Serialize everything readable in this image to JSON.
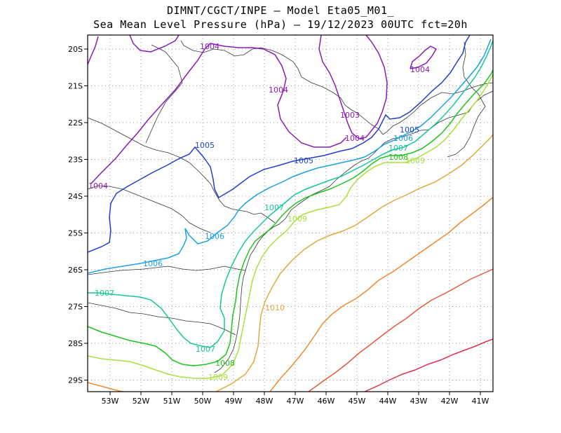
{
  "title": {
    "line1": "DIMNT/CGCT/INPE –  Model Eta05_M01_",
    "line2": "Sea Mean Level Pressure (hPa) – 19/12/2023 00UTC fct=20h"
  },
  "axes": {
    "x_ticks": [
      "53W",
      "52W",
      "51W",
      "50W",
      "49W",
      "48W",
      "47W",
      "46W",
      "45W",
      "44W",
      "43W",
      "42W",
      "41W"
    ],
    "y_ticks": [
      "20S",
      "21S",
      "22S",
      "23S",
      "24S",
      "25S",
      "26S",
      "27S",
      "28S",
      "29S"
    ]
  },
  "colors": {
    "1003": "#8a1bb8",
    "1004": "#8a1bb8",
    "1005": "#1f3fd4",
    "1006": "#1aa0e6",
    "1007": "#15c79a",
    "1008": "#1ec31e",
    "1009": "#a6e23a",
    "1010": "#e0a83a",
    "1011": "#ee8a30",
    "1012": "#e65a3a",
    "1013": "#e03050",
    "1014": "#d81a8a"
  },
  "contour_labels": [
    {
      "id": "l1004a",
      "text": "1004",
      "level": "1004"
    },
    {
      "id": "l1004b",
      "text": "1004",
      "level": "1004"
    },
    {
      "id": "l1004c",
      "text": "1004",
      "level": "1004"
    },
    {
      "id": "l1004d",
      "text": "1004",
      "level": "1004"
    },
    {
      "id": "l1004e",
      "text": "1004",
      "level": "1004"
    },
    {
      "id": "l1003",
      "text": "1003",
      "level": "1003"
    },
    {
      "id": "l1005a",
      "text": "1005",
      "level": "1005"
    },
    {
      "id": "l1005b",
      "text": "1005",
      "level": "1005"
    },
    {
      "id": "l1005c",
      "text": "1005",
      "level": "1005"
    },
    {
      "id": "l1006a",
      "text": "1006",
      "level": "1006"
    },
    {
      "id": "l1006b",
      "text": "1006",
      "level": "1006"
    },
    {
      "id": "l1006c",
      "text": "1006",
      "level": "1006"
    },
    {
      "id": "l1007a",
      "text": "1007",
      "level": "1007"
    },
    {
      "id": "l1007b",
      "text": "1007",
      "level": "1007"
    },
    {
      "id": "l1007c",
      "text": "1007",
      "level": "1007"
    },
    {
      "id": "l1007d",
      "text": "1007",
      "level": "1007"
    },
    {
      "id": "l1008a",
      "text": "1008",
      "level": "1008"
    },
    {
      "id": "l1008b",
      "text": "1008",
      "level": "1008"
    },
    {
      "id": "l1009a",
      "text": "1009",
      "level": "1009"
    },
    {
      "id": "l1009b",
      "text": "1009",
      "level": "1009"
    },
    {
      "id": "l1009c",
      "text": "1009",
      "level": "1009"
    },
    {
      "id": "l1010",
      "text": "1010",
      "level": "1010"
    }
  ]
}
